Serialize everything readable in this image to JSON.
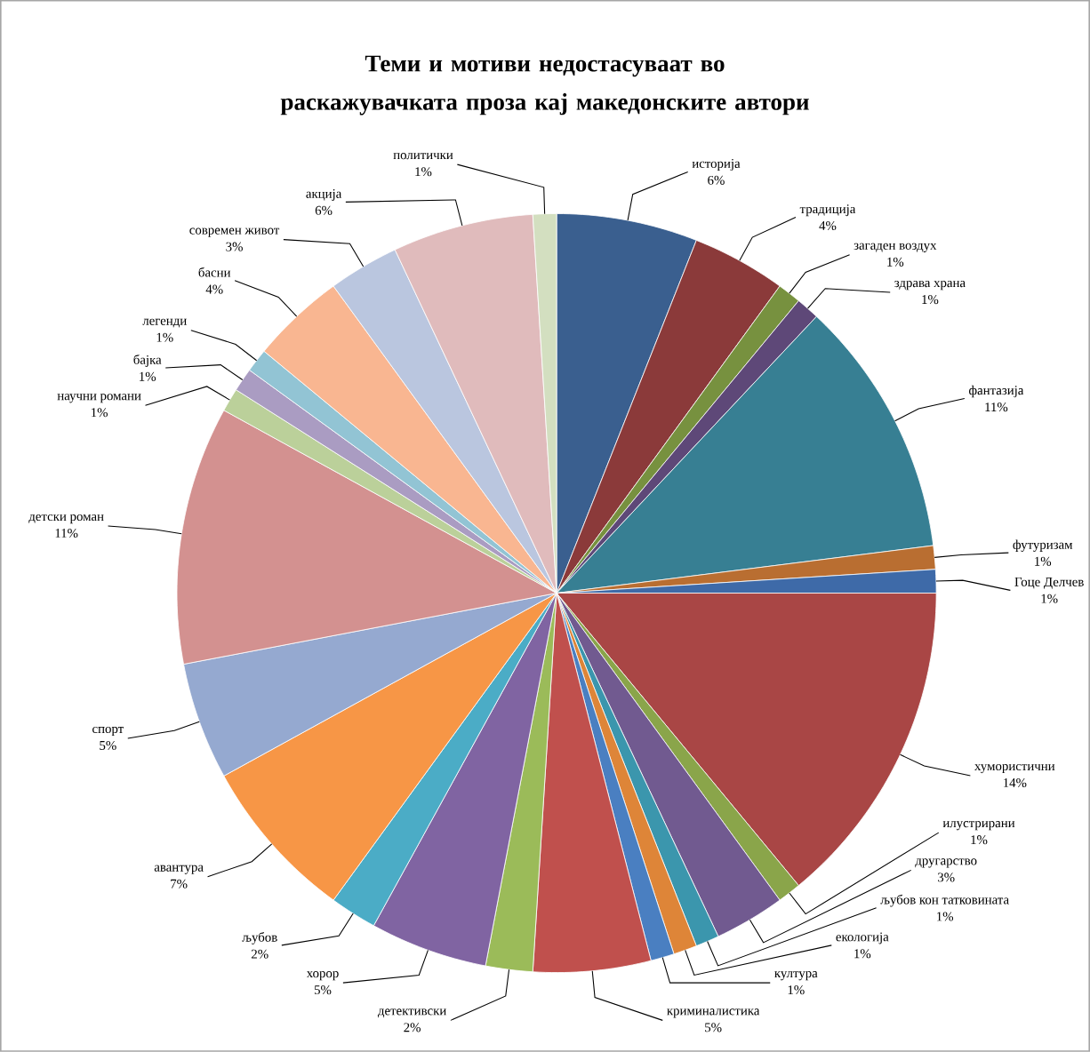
{
  "chart_data": {
    "type": "pie",
    "title": "Теми и мотиви недостасуваат во раскажувачката проза кај македонските автори",
    "categories": [
      "историја",
      "традиција",
      "загаден воздух",
      "здрава храна",
      "фантазија",
      "футуризам",
      "Гоце Делчев",
      "хумористични",
      "илустрирани",
      "другарство",
      "љубов кон татковината",
      "екологија",
      "култура",
      "криминалистика",
      "детективски",
      "хорор",
      "љубов",
      "авантура",
      "спорт",
      "детски роман",
      "научни романи",
      "бајка",
      "легенди",
      "басни",
      "современ живот",
      "акција",
      "политички"
    ],
    "values": [
      6,
      4,
      1,
      1,
      11,
      1,
      1,
      14,
      1,
      3,
      1,
      1,
      1,
      5,
      2,
      5,
      2,
      7,
      5,
      11,
      1,
      1,
      1,
      4,
      3,
      6,
      1
    ],
    "value_labels": [
      "6%",
      "4%",
      "1%",
      "1%",
      "11%",
      "1%",
      "1%",
      "14%",
      "1%",
      "3%",
      "1%",
      "1%",
      "1%",
      "5%",
      "2%",
      "5%",
      "2%",
      "7%",
      "5%",
      "11%",
      "1%",
      "1%",
      "1%",
      "4%",
      "3%",
      "6%",
      "1%"
    ],
    "colors": [
      "#3a5f8f",
      "#8b3a3a",
      "#77913f",
      "#5e4878",
      "#377f93",
      "#b96e31",
      "#3e6aa8",
      "#a94645",
      "#8aa54a",
      "#715a90",
      "#3b96ad",
      "#de8538",
      "#4a7fc1",
      "#c0504d",
      "#9bbb59",
      "#8064a2",
      "#4bacc6",
      "#f79646",
      "#95a9d0",
      "#d39190",
      "#bbd09a",
      "#aa9cc2",
      "#92c4d4",
      "#f9b691",
      "#bac6df",
      "#e0bbbc",
      "#d3dfc0"
    ]
  }
}
